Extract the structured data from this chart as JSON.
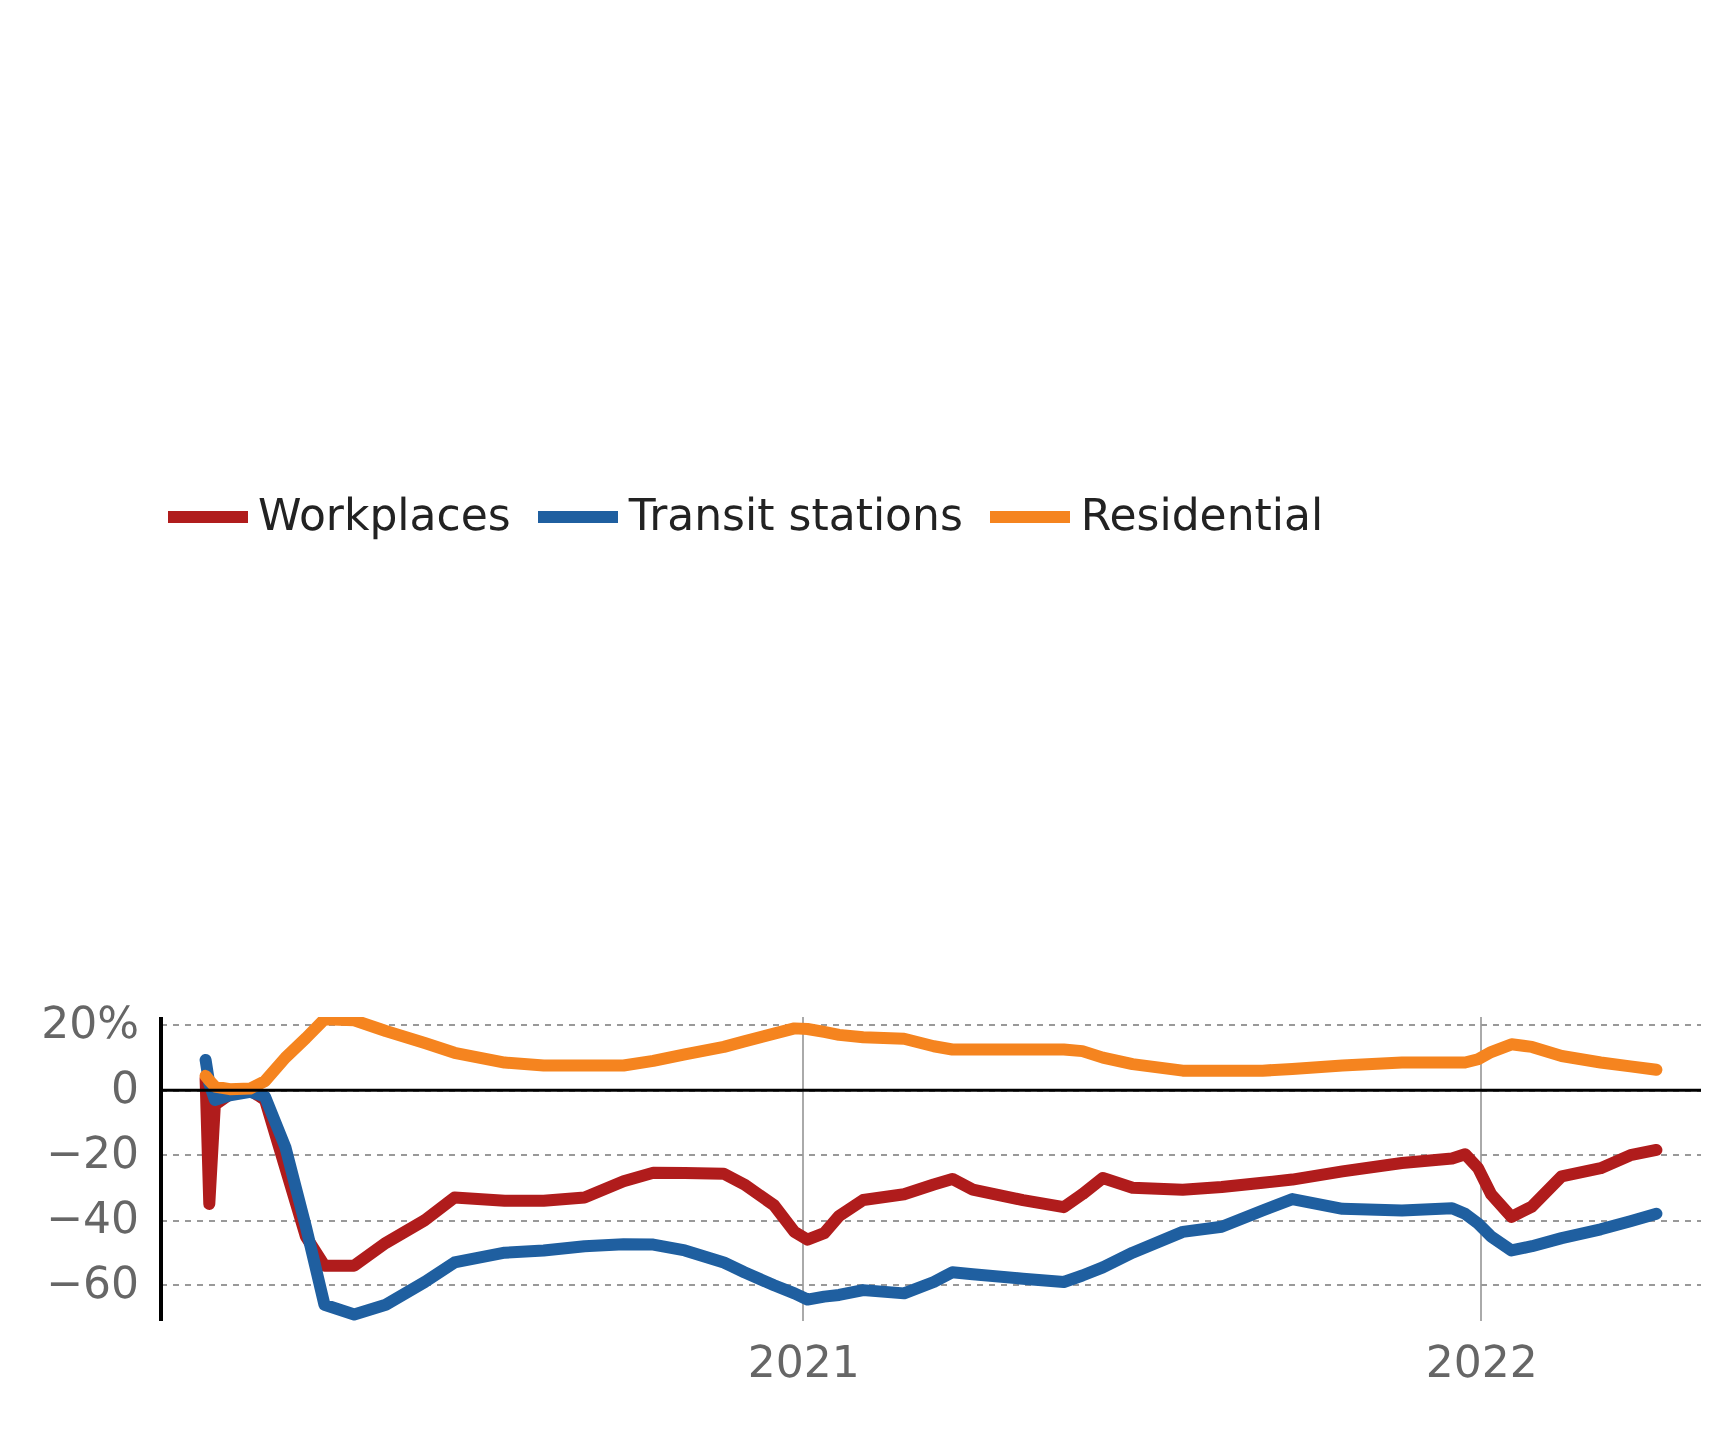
{
  "chart_data": {
    "type": "line",
    "x": [
      "2020-02-14",
      "2020-02-16",
      "2020-02-19",
      "2020-02-27",
      "2020-03-09",
      "2020-03-17",
      "2020-03-28",
      "2020-04-08",
      "2020-04-18",
      "2020-05-04",
      "2020-05-21",
      "2020-06-11",
      "2020-06-27",
      "2020-07-24",
      "2020-08-14",
      "2020-09-05",
      "2020-09-26",
      "2020-10-12",
      "2020-10-29",
      "2020-11-19",
      "2020-11-30",
      "2020-12-16",
      "2020-12-27",
      "2021-01-03",
      "2021-01-12",
      "2021-01-20",
      "2021-02-02",
      "2021-02-24",
      "2021-03-12",
      "2021-03-22",
      "2021-04-02",
      "2021-04-29",
      "2021-05-21",
      "2021-05-31",
      "2021-06-11",
      "2021-06-27",
      "2021-07-24",
      "2021-08-14",
      "2021-09-05",
      "2021-09-21",
      "2021-10-18",
      "2021-11-19",
      "2021-12-16",
      "2021-12-23",
      "2021-12-30",
      "2022-01-06",
      "2022-01-17",
      "2022-01-28",
      "2022-02-13",
      "2022-03-06",
      "2022-03-22",
      "2022-04-05"
    ],
    "series": [
      {
        "name": "Workplaces",
        "color": "#b01c1c",
        "values": [
          3.6,
          -35,
          -4.5,
          -1.3,
          0,
          -3,
          -24,
          -45,
          -54,
          -54,
          -47,
          -40,
          -33,
          -34,
          -34,
          -33,
          -28,
          -25.4,
          -25.5,
          -25.7,
          -29,
          -35.4,
          -43.6,
          -46,
          -44,
          -38.7,
          -33.8,
          -32,
          -29,
          -27.3,
          -30.6,
          -33.8,
          -36,
          -32,
          -27,
          -30,
          -30.6,
          -29.8,
          -28.5,
          -27.5,
          -25,
          -22.4,
          -21,
          -19.7,
          -24,
          -32,
          -39,
          -35.8,
          -26.5,
          -24,
          -20,
          -18.4
        ]
      },
      {
        "name": "Transit stations",
        "color": "#1f5fa0",
        "values": [
          9.3,
          2,
          -3,
          -1.6,
          -0.5,
          -2,
          -17.6,
          -42,
          -66,
          -69,
          -66,
          -59,
          -53,
          -50,
          -49.3,
          -48,
          -47.4,
          -47.5,
          -49.3,
          -53,
          -56,
          -60,
          -62.5,
          -64.4,
          -63.5,
          -63,
          -61.5,
          -62.5,
          -59,
          -56,
          -56.6,
          -58,
          -59,
          -57,
          -54.5,
          -50,
          -43.6,
          -42,
          -37,
          -33.5,
          -36.5,
          -37,
          -36.3,
          -38,
          -41,
          -45,
          -49.3,
          -48,
          -45.5,
          -42.8,
          -40.3,
          -38
        ]
      },
      {
        "name": "Residential",
        "color": "#f5841f",
        "values": [
          4.4,
          3,
          1.1,
          0.3,
          0.5,
          2.8,
          10,
          16,
          21.8,
          21.5,
          18.2,
          14.5,
          11.5,
          8.5,
          7.6,
          7.6,
          7.6,
          9,
          11,
          13.3,
          15,
          17.4,
          19,
          18.8,
          17.9,
          17,
          16.3,
          15.8,
          13.5,
          12.5,
          12.5,
          12.5,
          12.5,
          12,
          10,
          8,
          6,
          6,
          6,
          6.5,
          7.6,
          8.5,
          8.5,
          8.5,
          9.5,
          11.7,
          14.1,
          13.3,
          10.5,
          8.5,
          7.3,
          6.3
        ]
      }
    ],
    "xlim": [
      "2020-01-21",
      "2022-04-29"
    ],
    "xticks": [
      {
        "value": "2021-01-01",
        "label": "2021"
      },
      {
        "value": "2022-01-01",
        "label": "2022"
      }
    ],
    "ylim": [
      -71,
      22.5
    ],
    "yticks": [
      {
        "value": 20,
        "label": "20%"
      },
      0,
      {
        "value": -20,
        "label": "−20"
      },
      {
        "value": -40,
        "label": "−40"
      },
      {
        "value": -60,
        "label": "−60"
      }
    ],
    "ref_lines": [
      {
        "axis": "y",
        "value": 0,
        "color": "#000000"
      }
    ],
    "grid": true,
    "legend": "top",
    "line_style": "solid"
  }
}
